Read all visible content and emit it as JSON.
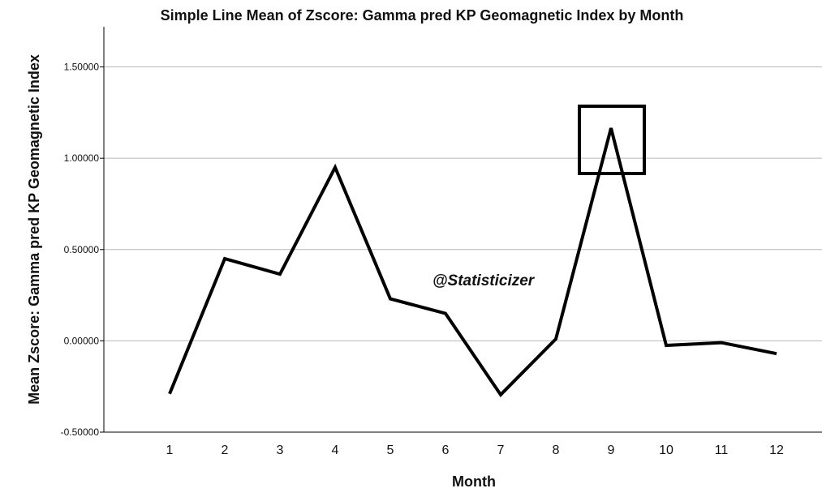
{
  "chart_data": {
    "type": "line",
    "title": "Simple Line Mean of Zscore:  Gamma pred KP Geomagnetic Index by Month",
    "xlabel": "Month",
    "ylabel": "Mean Zscore:  Gamma pred KP Geomagnetic Index",
    "categories": [
      "1",
      "2",
      "3",
      "4",
      "5",
      "6",
      "7",
      "8",
      "9",
      "10",
      "11",
      "12"
    ],
    "values": [
      -0.29,
      0.45,
      0.365,
      0.95,
      0.23,
      0.15,
      -0.295,
      0.01,
      1.165,
      -0.025,
      -0.01,
      -0.07
    ],
    "yticks": [
      "-0.50000",
      "0.00000",
      "0.50000",
      "1.00000",
      "1.50000"
    ],
    "ytick_values": [
      -0.5,
      0,
      0.5,
      1.0,
      1.5
    ],
    "ylim": [
      -0.5,
      1.72
    ],
    "grid": "horizontal",
    "line_color": "#000000",
    "grid_color": "#b8b8b8",
    "annotation": {
      "text": "@Statisticizer"
    },
    "highlight_box": {
      "category": "9"
    }
  }
}
